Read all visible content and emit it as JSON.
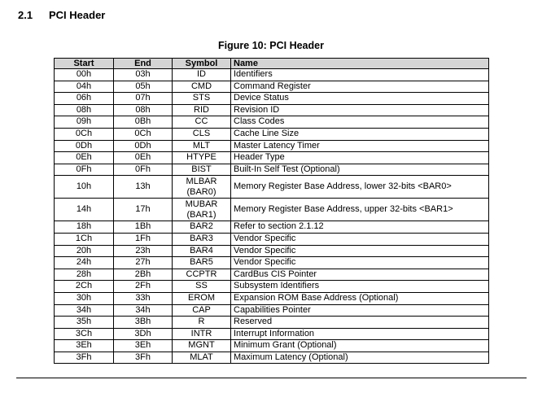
{
  "section": {
    "number": "2.1",
    "title": "PCI Header"
  },
  "figure": {
    "caption": "Figure 10: PCI Header"
  },
  "table": {
    "headers": {
      "start": "Start",
      "end": "End",
      "symbol": "Symbol",
      "name": "Name"
    },
    "rows": [
      {
        "start": "00h",
        "end": "03h",
        "symbol": "ID",
        "name": "Identifiers"
      },
      {
        "start": "04h",
        "end": "05h",
        "symbol": "CMD",
        "name": "Command Register"
      },
      {
        "start": "06h",
        "end": "07h",
        "symbol": "STS",
        "name": "Device Status"
      },
      {
        "start": "08h",
        "end": "08h",
        "symbol": "RID",
        "name": "Revision ID"
      },
      {
        "start": "09h",
        "end": "0Bh",
        "symbol": "CC",
        "name": "Class Codes"
      },
      {
        "start": "0Ch",
        "end": "0Ch",
        "symbol": "CLS",
        "name": "Cache Line Size"
      },
      {
        "start": "0Dh",
        "end": "0Dh",
        "symbol": "MLT",
        "name": "Master Latency Timer"
      },
      {
        "start": "0Eh",
        "end": "0Eh",
        "symbol": "HTYPE",
        "name": "Header Type"
      },
      {
        "start": "0Fh",
        "end": "0Fh",
        "symbol": "BIST",
        "name": "Built-In Self Test (Optional)"
      },
      {
        "start": "10h",
        "end": "13h",
        "symbol": "MLBAR (BAR0)",
        "name": "Memory Register Base Address, lower 32-bits <BAR0>"
      },
      {
        "start": "14h",
        "end": "17h",
        "symbol": "MUBAR (BAR1)",
        "name": "Memory Register Base Address, upper 32-bits <BAR1>"
      },
      {
        "start": "18h",
        "end": "1Bh",
        "symbol": "BAR2",
        "name": "Refer to section 2.1.12"
      },
      {
        "start": "1Ch",
        "end": "1Fh",
        "symbol": "BAR3",
        "name": "Vendor Specific"
      },
      {
        "start": "20h",
        "end": "23h",
        "symbol": "BAR4",
        "name": "Vendor Specific"
      },
      {
        "start": "24h",
        "end": "27h",
        "symbol": "BAR5",
        "name": "Vendor Specific"
      },
      {
        "start": "28h",
        "end": "2Bh",
        "symbol": "CCPTR",
        "name": "CardBus CIS Pointer"
      },
      {
        "start": "2Ch",
        "end": "2Fh",
        "symbol": "SS",
        "name": "Subsystem Identifiers"
      },
      {
        "start": "30h",
        "end": "33h",
        "symbol": "EROM",
        "name": "Expansion ROM Base Address (Optional)"
      },
      {
        "start": "34h",
        "end": "34h",
        "symbol": "CAP",
        "name": "Capabilities Pointer"
      },
      {
        "start": "35h",
        "end": "3Bh",
        "symbol": "R",
        "name": "Reserved"
      },
      {
        "start": "3Ch",
        "end": "3Dh",
        "symbol": "INTR",
        "name": "Interrupt Information"
      },
      {
        "start": "3Eh",
        "end": "3Eh",
        "symbol": "MGNT",
        "name": "Minimum Grant (Optional)"
      },
      {
        "start": "3Fh",
        "end": "3Fh",
        "symbol": "MLAT",
        "name": "Maximum Latency (Optional)"
      }
    ]
  },
  "colors": {
    "header_background": "#d4d4d4",
    "text": "#000000",
    "background": "#ffffff"
  }
}
